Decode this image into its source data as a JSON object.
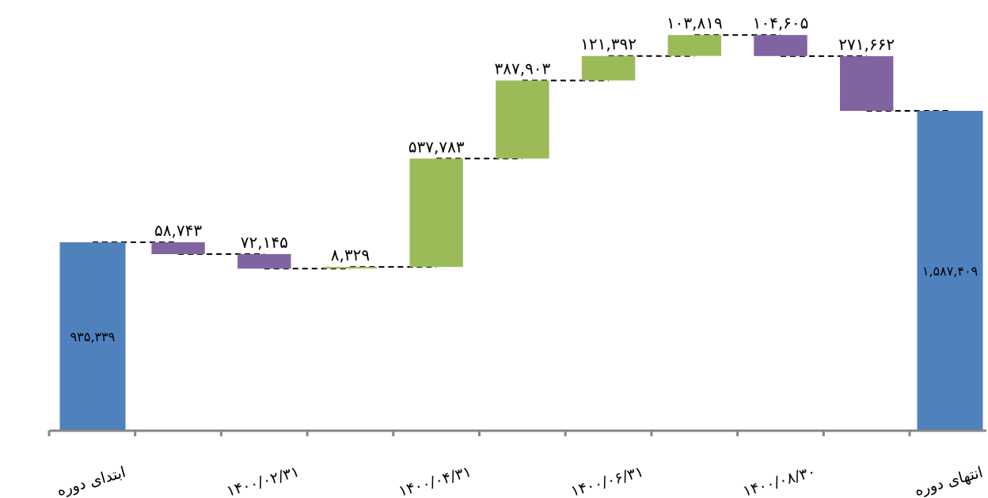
{
  "chart_data": {
    "type": "waterfall",
    "title": "",
    "xlabel": "",
    "ylabel": "",
    "ylim": [
      0,
      2000000
    ],
    "grid": false,
    "legend": "none",
    "colors": {
      "total": "#4f81bd",
      "increase": "#9bbb59",
      "decrease": "#8064a2",
      "connector": "#000000",
      "axis": "#868686"
    },
    "steps": [
      {
        "kind": "total",
        "value": 935339,
        "label": "۹۳۵,۳۳۹"
      },
      {
        "kind": "decrease",
        "value": 58743,
        "label": "۵۸,۷۴۳"
      },
      {
        "kind": "decrease",
        "value": 72145,
        "label": "۷۲,۱۴۵"
      },
      {
        "kind": "increase",
        "value": 8329,
        "label": "۸,۳۲۹"
      },
      {
        "kind": "increase",
        "value": 537783,
        "label": "۵۳۷,۷۸۳"
      },
      {
        "kind": "increase",
        "value": 387903,
        "label": "۳۸۷,۹۰۳"
      },
      {
        "kind": "increase",
        "value": 121392,
        "label": "۱۲۱,۳۹۲"
      },
      {
        "kind": "increase",
        "value": 103819,
        "label": "۱۰۳,۸۱۹"
      },
      {
        "kind": "decrease",
        "value": 104605,
        "label": "۱۰۴,۶۰۵"
      },
      {
        "kind": "decrease",
        "value": 271662,
        "label": "۲۷۱,۶۶۲"
      },
      {
        "kind": "total",
        "value": 1587409,
        "label": "۱,۵۸۷,۴۰۹"
      }
    ],
    "categories": [
      "ابتدای دوره",
      "",
      "۱۴۰۰/۰۲/۳۱",
      "",
      "۱۴۰۰/۰۴/۳۱",
      "",
      "۱۴۰۰/۰۶/۳۱",
      "",
      "۱۴۰۰/۰۸/۳۰",
      "",
      "انتهای دوره"
    ]
  }
}
